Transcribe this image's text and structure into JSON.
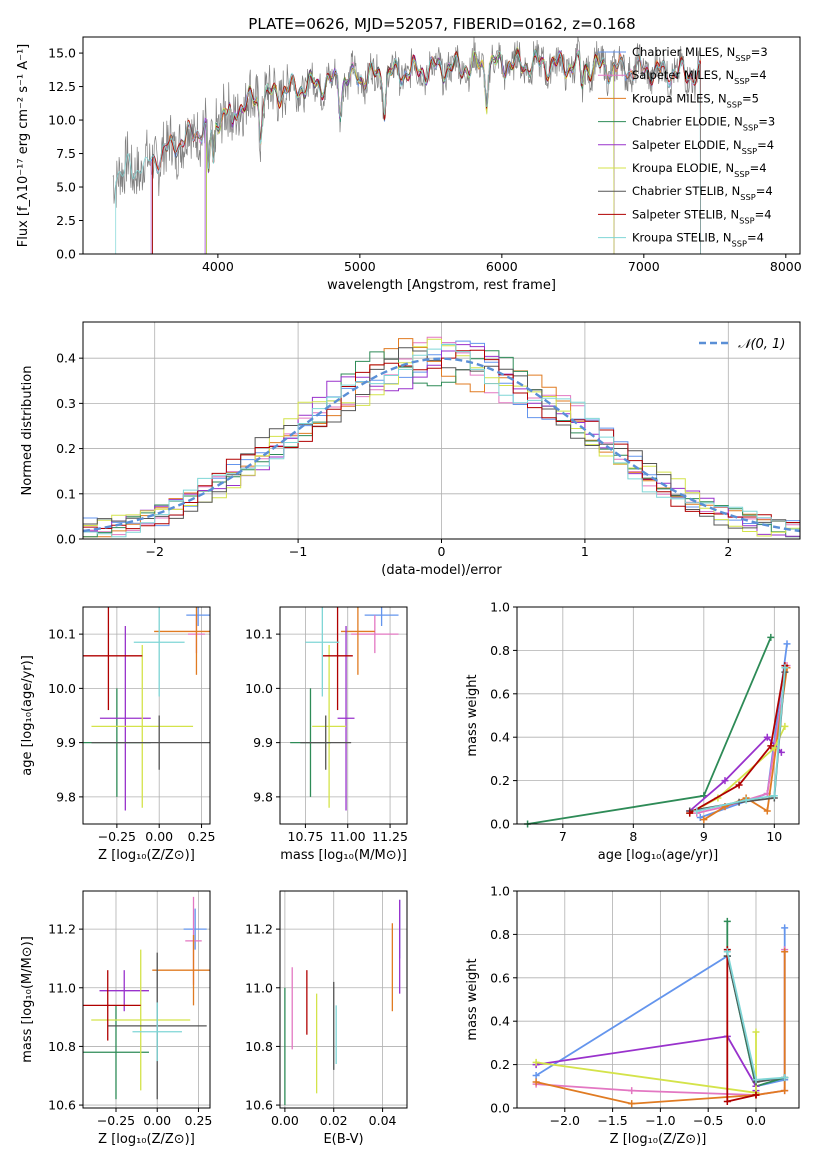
{
  "figure_title": "PLATE=0626, MJD=52057, FIBERID=0162, z=0.168",
  "colors": {
    "obs": "#808080",
    "Chabrier_MILES": "#6495ed",
    "Salpeter_MILES": "#e377c2",
    "Kroupa_MILES": "#e07b22",
    "Chabrier_ELODIE": "#2e8b57",
    "Salpeter_ELODIE": "#9932cc",
    "Kroupa_ELODIE": "#d4e34a",
    "Chabrier_STELIB": "#555555",
    "Salpeter_STELIB": "#b00000",
    "Kroupa_STELIB": "#7fd6d6",
    "normal": "#5a8fd6"
  },
  "chart_data": [
    {
      "id": "spectrum",
      "type": "line",
      "xlabel": "wavelength [Angstrom, rest frame]",
      "ylabel": "Flux [f_λ10⁻¹⁷ erg cm⁻² s⁻¹ A⁻¹]",
      "xlim": [
        3050,
        8100
      ],
      "ylim": [
        0,
        16.2
      ],
      "xticks": [
        4000,
        5000,
        6000,
        7000,
        8000
      ],
      "yticks": [
        0.0,
        2.5,
        5.0,
        7.5,
        10.0,
        12.5,
        15.0
      ],
      "legend": [
        "Chabrier MILES, N_SSP=3",
        "Salpeter MILES, N_SSP=4",
        "Kroupa MILES, N_SSP=5",
        "Chabrier ELODIE, N_SSP=3",
        "Salpeter ELODIE, N_SSP=4",
        "Kroupa ELODIE, N_SSP=4",
        "Chabrier STELIB, N_SSP=4",
        "Salpeter STELIB, N_SSP=4",
        "Kroupa STELIB, N_SSP=4"
      ],
      "legend_position": "right",
      "continuum": {
        "x": [
          3250,
          3500,
          3700,
          3900,
          4000,
          4200,
          4500,
          5000,
          5500,
          6000,
          6500,
          7000,
          7500
        ],
        "y": [
          6.0,
          6.6,
          8.2,
          9.4,
          10.2,
          11.3,
          12.3,
          13.2,
          13.8,
          14.2,
          14.1,
          13.7,
          13.3
        ]
      }
    },
    {
      "id": "residual_hist",
      "type": "bar",
      "xlabel": "(data-model)/error",
      "ylabel": "Normed distribution",
      "xlim": [
        -2.5,
        2.5
      ],
      "ylim": [
        0,
        0.48
      ],
      "xticks": [
        -2,
        -1,
        0,
        1,
        2
      ],
      "yticks": [
        0.0,
        0.1,
        0.2,
        0.3,
        0.4
      ],
      "legend": [
        "𝒩(0, 1)"
      ],
      "legend_position": "top-right",
      "bin_width": 0.1,
      "normal": {
        "mean": 0,
        "sigma": 1
      }
    },
    {
      "id": "age_vs_Z",
      "type": "scatter",
      "xlabel": "Z [log₁₀(Z/Z⊙)]",
      "ylabel": "age  [log₁₀(age/yr)]",
      "xlim": [
        -0.45,
        0.3
      ],
      "ylim": [
        9.75,
        10.15
      ],
      "xticks": [
        -0.25,
        0.0,
        0.25
      ],
      "yticks": [
        9.8,
        9.9,
        10.0,
        10.1
      ],
      "points": [
        {
          "model": "Chabrier_MILES",
          "x": 0.23,
          "y": 10.135,
          "xerr": 0.07,
          "yerr": 0.02
        },
        {
          "model": "Salpeter_MILES",
          "x": 0.22,
          "y": 10.1,
          "xerr": 0.05,
          "yerr": 0.035
        },
        {
          "model": "Kroupa_MILES",
          "x": 0.22,
          "y": 10.105,
          "xerr": 0.25,
          "yerr": 0.08
        },
        {
          "model": "Chabrier_ELODIE",
          "x": -0.25,
          "y": 9.9,
          "xerr": 0.2,
          "yerr": 0.1
        },
        {
          "model": "Salpeter_ELODIE",
          "x": -0.2,
          "y": 9.945,
          "xerr": 0.15,
          "yerr": 0.17
        },
        {
          "model": "Kroupa_ELODIE",
          "x": -0.1,
          "y": 9.93,
          "xerr": 0.3,
          "yerr": 0.15
        },
        {
          "model": "Chabrier_STELIB",
          "x": 0.0,
          "y": 9.9,
          "xerr": 0.4,
          "yerr": 0.05
        },
        {
          "model": "Salpeter_STELIB",
          "x": -0.3,
          "y": 10.06,
          "xerr": 0.2,
          "yerr": 0.1
        },
        {
          "model": "Kroupa_STELIB",
          "x": 0.0,
          "y": 10.085,
          "xerr": 0.15,
          "yerr": 0.1
        }
      ]
    },
    {
      "id": "age_vs_mass",
      "type": "scatter",
      "xlabel": "mass [log₁₀(M/M⊙)]",
      "ylabel": "",
      "xlim": [
        10.6,
        11.35
      ],
      "ylim": [
        9.75,
        10.15
      ],
      "xticks": [
        10.75,
        11.0,
        11.25
      ],
      "yticks": [
        9.8,
        9.9,
        10.0,
        10.1
      ],
      "points": [
        {
          "model": "Chabrier_MILES",
          "x": 11.2,
          "y": 10.135,
          "xerr": 0.1,
          "yerr": 0.02
        },
        {
          "model": "Salpeter_MILES",
          "x": 11.16,
          "y": 10.1,
          "xerr": 0.14,
          "yerr": 0.035
        },
        {
          "model": "Kroupa_MILES",
          "x": 11.06,
          "y": 10.105,
          "xerr": 0.1,
          "yerr": 0.08
        },
        {
          "model": "Chabrier_ELODIE",
          "x": 10.78,
          "y": 9.9,
          "xerr": 0.12,
          "yerr": 0.1
        },
        {
          "model": "Salpeter_ELODIE",
          "x": 10.99,
          "y": 9.945,
          "xerr": 0.05,
          "yerr": 0.17
        },
        {
          "model": "Kroupa_ELODIE",
          "x": 10.89,
          "y": 9.93,
          "xerr": 0.1,
          "yerr": 0.15
        },
        {
          "model": "Chabrier_STELIB",
          "x": 10.87,
          "y": 9.9,
          "xerr": 0.15,
          "yerr": 0.05
        },
        {
          "model": "Salpeter_STELIB",
          "x": 10.94,
          "y": 10.06,
          "xerr": 0.09,
          "yerr": 0.1
        },
        {
          "model": "Kroupa_STELIB",
          "x": 10.85,
          "y": 10.085,
          "xerr": 0.1,
          "yerr": 0.1
        }
      ]
    },
    {
      "id": "mass_weight_vs_age",
      "type": "line",
      "xlabel": "age  [log₁₀(age/yr)]",
      "ylabel": "mass weight",
      "xlim": [
        6.35,
        10.35
      ],
      "ylim": [
        0,
        1.0
      ],
      "xticks": [
        7,
        8,
        9,
        10
      ],
      "yticks": [
        0.0,
        0.2,
        0.4,
        0.6,
        0.8,
        1.0
      ],
      "series": [
        {
          "model": "Chabrier_MILES",
          "x": [
            8.95,
            9.9,
            10.18
          ],
          "y": [
            0.03,
            0.14,
            0.83
          ]
        },
        {
          "model": "Salpeter_MILES",
          "x": [
            8.9,
            9.3,
            9.9,
            10.18
          ],
          "y": [
            0.05,
            0.08,
            0.14,
            0.73
          ]
        },
        {
          "model": "Kroupa_MILES",
          "x": [
            9.0,
            9.3,
            9.6,
            9.9,
            10.18
          ],
          "y": [
            0.02,
            0.08,
            0.12,
            0.06,
            0.72
          ]
        },
        {
          "model": "Chabrier_ELODIE",
          "x": [
            6.5,
            9.0,
            9.95
          ],
          "y": [
            0.0,
            0.13,
            0.86
          ]
        },
        {
          "model": "Salpeter_ELODIE",
          "x": [
            8.8,
            9.3,
            9.9,
            10.1
          ],
          "y": [
            0.06,
            0.2,
            0.4,
            0.33
          ]
        },
        {
          "model": "Kroupa_ELODIE",
          "x": [
            8.8,
            9.2,
            10.0,
            10.15
          ],
          "y": [
            0.05,
            0.12,
            0.35,
            0.45
          ]
        },
        {
          "model": "Chabrier_STELIB",
          "x": [
            8.8,
            9.5,
            10.0,
            10.15
          ],
          "y": [
            0.06,
            0.1,
            0.12,
            0.7
          ]
        },
        {
          "model": "Salpeter_STELIB",
          "x": [
            8.8,
            9.5,
            9.95,
            10.15
          ],
          "y": [
            0.05,
            0.18,
            0.36,
            0.73
          ]
        },
        {
          "model": "Kroupa_STELIB",
          "x": [
            8.9,
            9.6,
            10.0,
            10.15
          ],
          "y": [
            0.06,
            0.11,
            0.13,
            0.72
          ]
        }
      ]
    },
    {
      "id": "mass_vs_Z",
      "type": "scatter",
      "xlabel": "Z [log₁₀(Z/Z⊙)]",
      "ylabel": "mass [log₁₀(M/M⊙)]",
      "xlim": [
        -0.45,
        0.32
      ],
      "ylim": [
        10.59,
        11.33
      ],
      "xticks": [
        -0.25,
        0.0,
        0.25
      ],
      "yticks": [
        10.6,
        10.8,
        11.0,
        11.2
      ],
      "points": [
        {
          "model": "Chabrier_MILES",
          "x": 0.23,
          "y": 11.2,
          "xerr": 0.07,
          "yerr": 0.07
        },
        {
          "model": "Salpeter_MILES",
          "x": 0.22,
          "y": 11.16,
          "xerr": 0.05,
          "yerr": 0.15
        },
        {
          "model": "Kroupa_MILES",
          "x": 0.22,
          "y": 11.06,
          "xerr": 0.25,
          "yerr": 0.12
        },
        {
          "model": "Chabrier_ELODIE",
          "x": -0.25,
          "y": 10.78,
          "xerr": 0.2,
          "yerr": 0.16
        },
        {
          "model": "Salpeter_ELODIE",
          "x": -0.2,
          "y": 10.99,
          "xerr": 0.15,
          "yerr": 0.07
        },
        {
          "model": "Kroupa_ELODIE",
          "x": -0.1,
          "y": 10.89,
          "xerr": 0.3,
          "yerr": 0.24
        },
        {
          "model": "Chabrier_STELIB",
          "x": 0.0,
          "y": 10.87,
          "xerr": 0.3,
          "yerr": 0.25
        },
        {
          "model": "Salpeter_STELIB",
          "x": -0.3,
          "y": 10.94,
          "xerr": 0.2,
          "yerr": 0.12
        },
        {
          "model": "Kroupa_STELIB",
          "x": 0.0,
          "y": 10.85,
          "xerr": 0.15,
          "yerr": 0.1
        }
      ]
    },
    {
      "id": "mass_vs_ebv",
      "type": "scatter",
      "xlabel": "E(B-V)",
      "ylabel": "",
      "xlim": [
        -0.002,
        0.05
      ],
      "ylim": [
        10.59,
        11.33
      ],
      "xticks": [
        0.0,
        0.02,
        0.04
      ],
      "yticks": [
        10.6,
        10.8,
        11.0,
        11.2
      ],
      "points": [
        {
          "model": "Chabrier_ELODIE",
          "x": 0.0,
          "y": 10.8,
          "yerr": 0.2
        },
        {
          "model": "Salpeter_MILES",
          "x": 0.003,
          "y": 10.93,
          "yerr": 0.14
        },
        {
          "model": "Kroupa_ELODIE",
          "x": 0.013,
          "y": 10.81,
          "yerr": 0.17
        },
        {
          "model": "Salpeter_STELIB",
          "x": 0.009,
          "y": 10.95,
          "yerr": 0.11
        },
        {
          "model": "Chabrier_STELIB",
          "x": 0.02,
          "y": 10.87,
          "yerr": 0.15
        },
        {
          "model": "Kroupa_STELIB",
          "x": 0.021,
          "y": 10.84,
          "yerr": 0.1
        },
        {
          "model": "Kroupa_MILES",
          "x": 0.044,
          "y": 11.07,
          "yerr": 0.15
        },
        {
          "model": "Chabrier_MILES",
          "x": 0.047,
          "y": 11.2,
          "yerr": 0.1
        },
        {
          "model": "Salpeter_ELODIE",
          "x": 0.047,
          "y": 11.14,
          "yerr": 0.16
        }
      ]
    },
    {
      "id": "mass_weight_vs_Z",
      "type": "line",
      "xlabel": "Z [log₁₀(Z/Z⊙)]",
      "ylabel": "mass weight",
      "xlim": [
        -2.5,
        0.45
      ],
      "ylim": [
        0,
        1.0
      ],
      "xticks": [
        -2.0,
        -1.5,
        -1.0,
        -0.5,
        0.0
      ],
      "yticks": [
        0.0,
        0.2,
        0.4,
        0.6,
        0.8,
        1.0
      ],
      "series": [
        {
          "model": "Chabrier_MILES",
          "x": [
            -2.3,
            -0.3,
            0.0,
            0.3,
            0.3
          ],
          "y": [
            0.15,
            0.7,
            0.1,
            0.13,
            0.83
          ]
        },
        {
          "model": "Salpeter_MILES",
          "x": [
            -2.3,
            -1.3,
            0.0,
            0.3,
            0.3
          ],
          "y": [
            0.11,
            0.08,
            0.06,
            0.08,
            0.73
          ]
        },
        {
          "model": "Kroupa_MILES",
          "x": [
            -2.3,
            -1.3,
            0.0,
            0.3,
            0.3
          ],
          "y": [
            0.12,
            0.02,
            0.06,
            0.08,
            0.72
          ]
        },
        {
          "model": "Chabrier_ELODIE",
          "x": [
            -0.3,
            -0.3,
            0.0,
            0.3
          ],
          "y": [
            0.86,
            0.7,
            0.1,
            0.14
          ]
        },
        {
          "model": "Salpeter_ELODIE",
          "x": [
            -2.3,
            -0.3,
            0.0,
            0.0
          ],
          "y": [
            0.2,
            0.33,
            0.1,
            0.08
          ]
        },
        {
          "model": "Kroupa_ELODIE",
          "x": [
            -2.3,
            0.0,
            0.0
          ],
          "y": [
            0.21,
            0.07,
            0.35
          ]
        },
        {
          "model": "Chabrier_STELIB",
          "x": [
            -0.3,
            0.0,
            0.3
          ],
          "y": [
            0.7,
            0.12,
            0.14
          ]
        },
        {
          "model": "Salpeter_STELIB",
          "x": [
            -0.3,
            -0.3,
            0.0,
            0.0
          ],
          "y": [
            0.73,
            0.03,
            0.06,
            0.06
          ]
        },
        {
          "model": "Kroupa_STELIB",
          "x": [
            -0.3,
            0.0,
            0.3
          ],
          "y": [
            0.72,
            0.13,
            0.14
          ]
        }
      ]
    }
  ]
}
